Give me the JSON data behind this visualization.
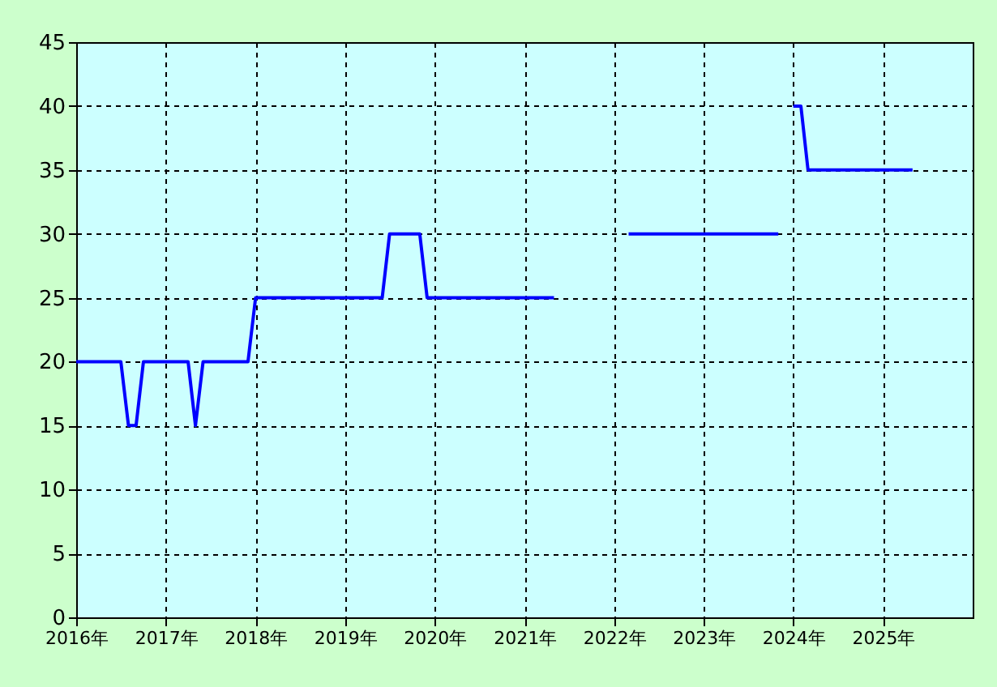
{
  "chart_data": {
    "type": "line",
    "x": [
      "2016-01",
      "2016-07",
      "2016-08",
      "2016-09",
      "2016-10",
      "2017-04",
      "2017-05",
      "2017-06",
      "2017-12",
      "2018-01",
      "2019-06",
      "2019-07",
      "2019-11",
      "2019-12",
      "2021-05",
      "2021-10",
      "2022-03",
      "2023-11",
      "2023-12",
      "2024-01",
      "2024-02",
      "2024-03",
      "2025-05"
    ],
    "series": [
      {
        "color": "#0000ff",
        "values": [
          20,
          20,
          15,
          15,
          20,
          20,
          15,
          20,
          20,
          25,
          25,
          30,
          30,
          25,
          25,
          null,
          30,
          30,
          null,
          40,
          40,
          35,
          35
        ]
      }
    ],
    "xlim": [
      "2016-01",
      "2026-01"
    ],
    "xticks": [
      {
        "value": "2016",
        "label": "2016年"
      },
      {
        "value": "2017",
        "label": "2017年"
      },
      {
        "value": "2018",
        "label": "2018年"
      },
      {
        "value": "2019",
        "label": "2019年"
      },
      {
        "value": "2020",
        "label": "2020年"
      },
      {
        "value": "2021",
        "label": "2021年"
      },
      {
        "value": "2022",
        "label": "2022年"
      },
      {
        "value": "2023",
        "label": "2023年"
      },
      {
        "value": "2024",
        "label": "2024年"
      },
      {
        "value": "2025",
        "label": "2025年"
      }
    ],
    "ylim": [
      0,
      45
    ],
    "yticks": [
      0,
      5,
      10,
      15,
      20,
      25,
      30,
      35,
      40,
      45
    ],
    "grid": true,
    "marker": "none",
    "line_style": "solid"
  }
}
